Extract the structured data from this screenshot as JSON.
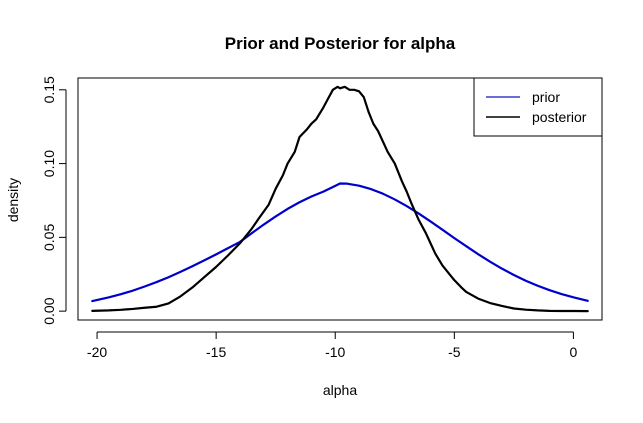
{
  "chart_data": {
    "type": "line",
    "title": "Prior and Posterior for alpha",
    "xlabel": "alpha",
    "ylabel": "density",
    "xlim": [
      -20.8,
      1.2
    ],
    "ylim": [
      -0.006,
      0.158
    ],
    "x_ticks": [
      -20,
      -15,
      -10,
      -5,
      0
    ],
    "x_tick_labels": [
      "-20",
      "-15",
      "-10",
      "-5",
      "0"
    ],
    "y_ticks": [
      0.0,
      0.05,
      0.1,
      0.15
    ],
    "y_tick_labels": [
      "0.00",
      "0.05",
      "0.10",
      "0.15"
    ],
    "grid": false,
    "legend": {
      "position": "top-right",
      "entries": [
        {
          "label": "prior",
          "color": "#3c3cc8"
        },
        {
          "label": "posterior",
          "color": "#000000"
        }
      ]
    },
    "series": [
      {
        "name": "prior",
        "color": "#0000cd",
        "x": [
          -20.2,
          -19.5,
          -19.0,
          -18.5,
          -18.0,
          -17.5,
          -17.0,
          -16.5,
          -16.0,
          -15.5,
          -15.0,
          -14.5,
          -14.0,
          -13.5,
          -13.0,
          -12.5,
          -12.0,
          -11.5,
          -11.0,
          -10.5,
          -10.0,
          -9.8,
          -9.5,
          -9.0,
          -8.5,
          -8.0,
          -7.5,
          -7.0,
          -6.5,
          -6.0,
          -5.5,
          -5.0,
          -4.5,
          -4.0,
          -3.5,
          -3.0,
          -2.5,
          -2.0,
          -1.5,
          -1.0,
          -0.5,
          0.0,
          0.6
        ],
        "y": [
          0.0068,
          0.0094,
          0.0115,
          0.0139,
          0.0167,
          0.0197,
          0.023,
          0.0266,
          0.0304,
          0.0344,
          0.0385,
          0.0427,
          0.0469,
          0.0529,
          0.0587,
          0.0642,
          0.0693,
          0.0738,
          0.0777,
          0.081,
          0.0849,
          0.0865,
          0.0864,
          0.085,
          0.0827,
          0.0796,
          0.0757,
          0.0712,
          0.0662,
          0.0608,
          0.0552,
          0.0495,
          0.044,
          0.0386,
          0.0335,
          0.0288,
          0.0245,
          0.0206,
          0.0172,
          0.0142,
          0.0116,
          0.0094,
          0.007
        ]
      },
      {
        "name": "posterior",
        "color": "#000000",
        "x": [
          -20.2,
          -19.5,
          -19.0,
          -18.5,
          -18.0,
          -17.5,
          -17.0,
          -16.5,
          -16.0,
          -15.5,
          -15.0,
          -14.5,
          -14.0,
          -13.5,
          -13.2,
          -12.8,
          -12.5,
          -12.2,
          -12.0,
          -11.7,
          -11.5,
          -11.2,
          -11.0,
          -10.8,
          -10.5,
          -10.3,
          -10.1,
          -9.9,
          -9.8,
          -9.6,
          -9.4,
          -9.2,
          -9.0,
          -8.8,
          -8.6,
          -8.4,
          -8.2,
          -8.0,
          -7.8,
          -7.5,
          -7.2,
          -7.0,
          -6.8,
          -6.5,
          -6.2,
          -6.0,
          -5.8,
          -5.5,
          -5.2,
          -5.0,
          -4.7,
          -4.5,
          -4.0,
          -3.5,
          -3.0,
          -2.5,
          -2.0,
          -1.5,
          -1.0,
          -0.5,
          0.0,
          0.6
        ],
        "y": [
          0.0002,
          0.0005,
          0.0009,
          0.0015,
          0.0023,
          0.003,
          0.0052,
          0.01,
          0.016,
          0.023,
          0.03,
          0.0378,
          0.046,
          0.056,
          0.063,
          0.072,
          0.083,
          0.092,
          0.1,
          0.108,
          0.118,
          0.123,
          0.127,
          0.13,
          0.138,
          0.144,
          0.15,
          0.152,
          0.151,
          0.152,
          0.15,
          0.15,
          0.149,
          0.145,
          0.135,
          0.127,
          0.122,
          0.115,
          0.108,
          0.1,
          0.088,
          0.081,
          0.073,
          0.062,
          0.053,
          0.046,
          0.039,
          0.031,
          0.025,
          0.021,
          0.016,
          0.013,
          0.0085,
          0.0055,
          0.0035,
          0.0018,
          0.001,
          0.0005,
          0.0002,
          0.0001,
          0.0001,
          0.0
        ]
      }
    ]
  }
}
